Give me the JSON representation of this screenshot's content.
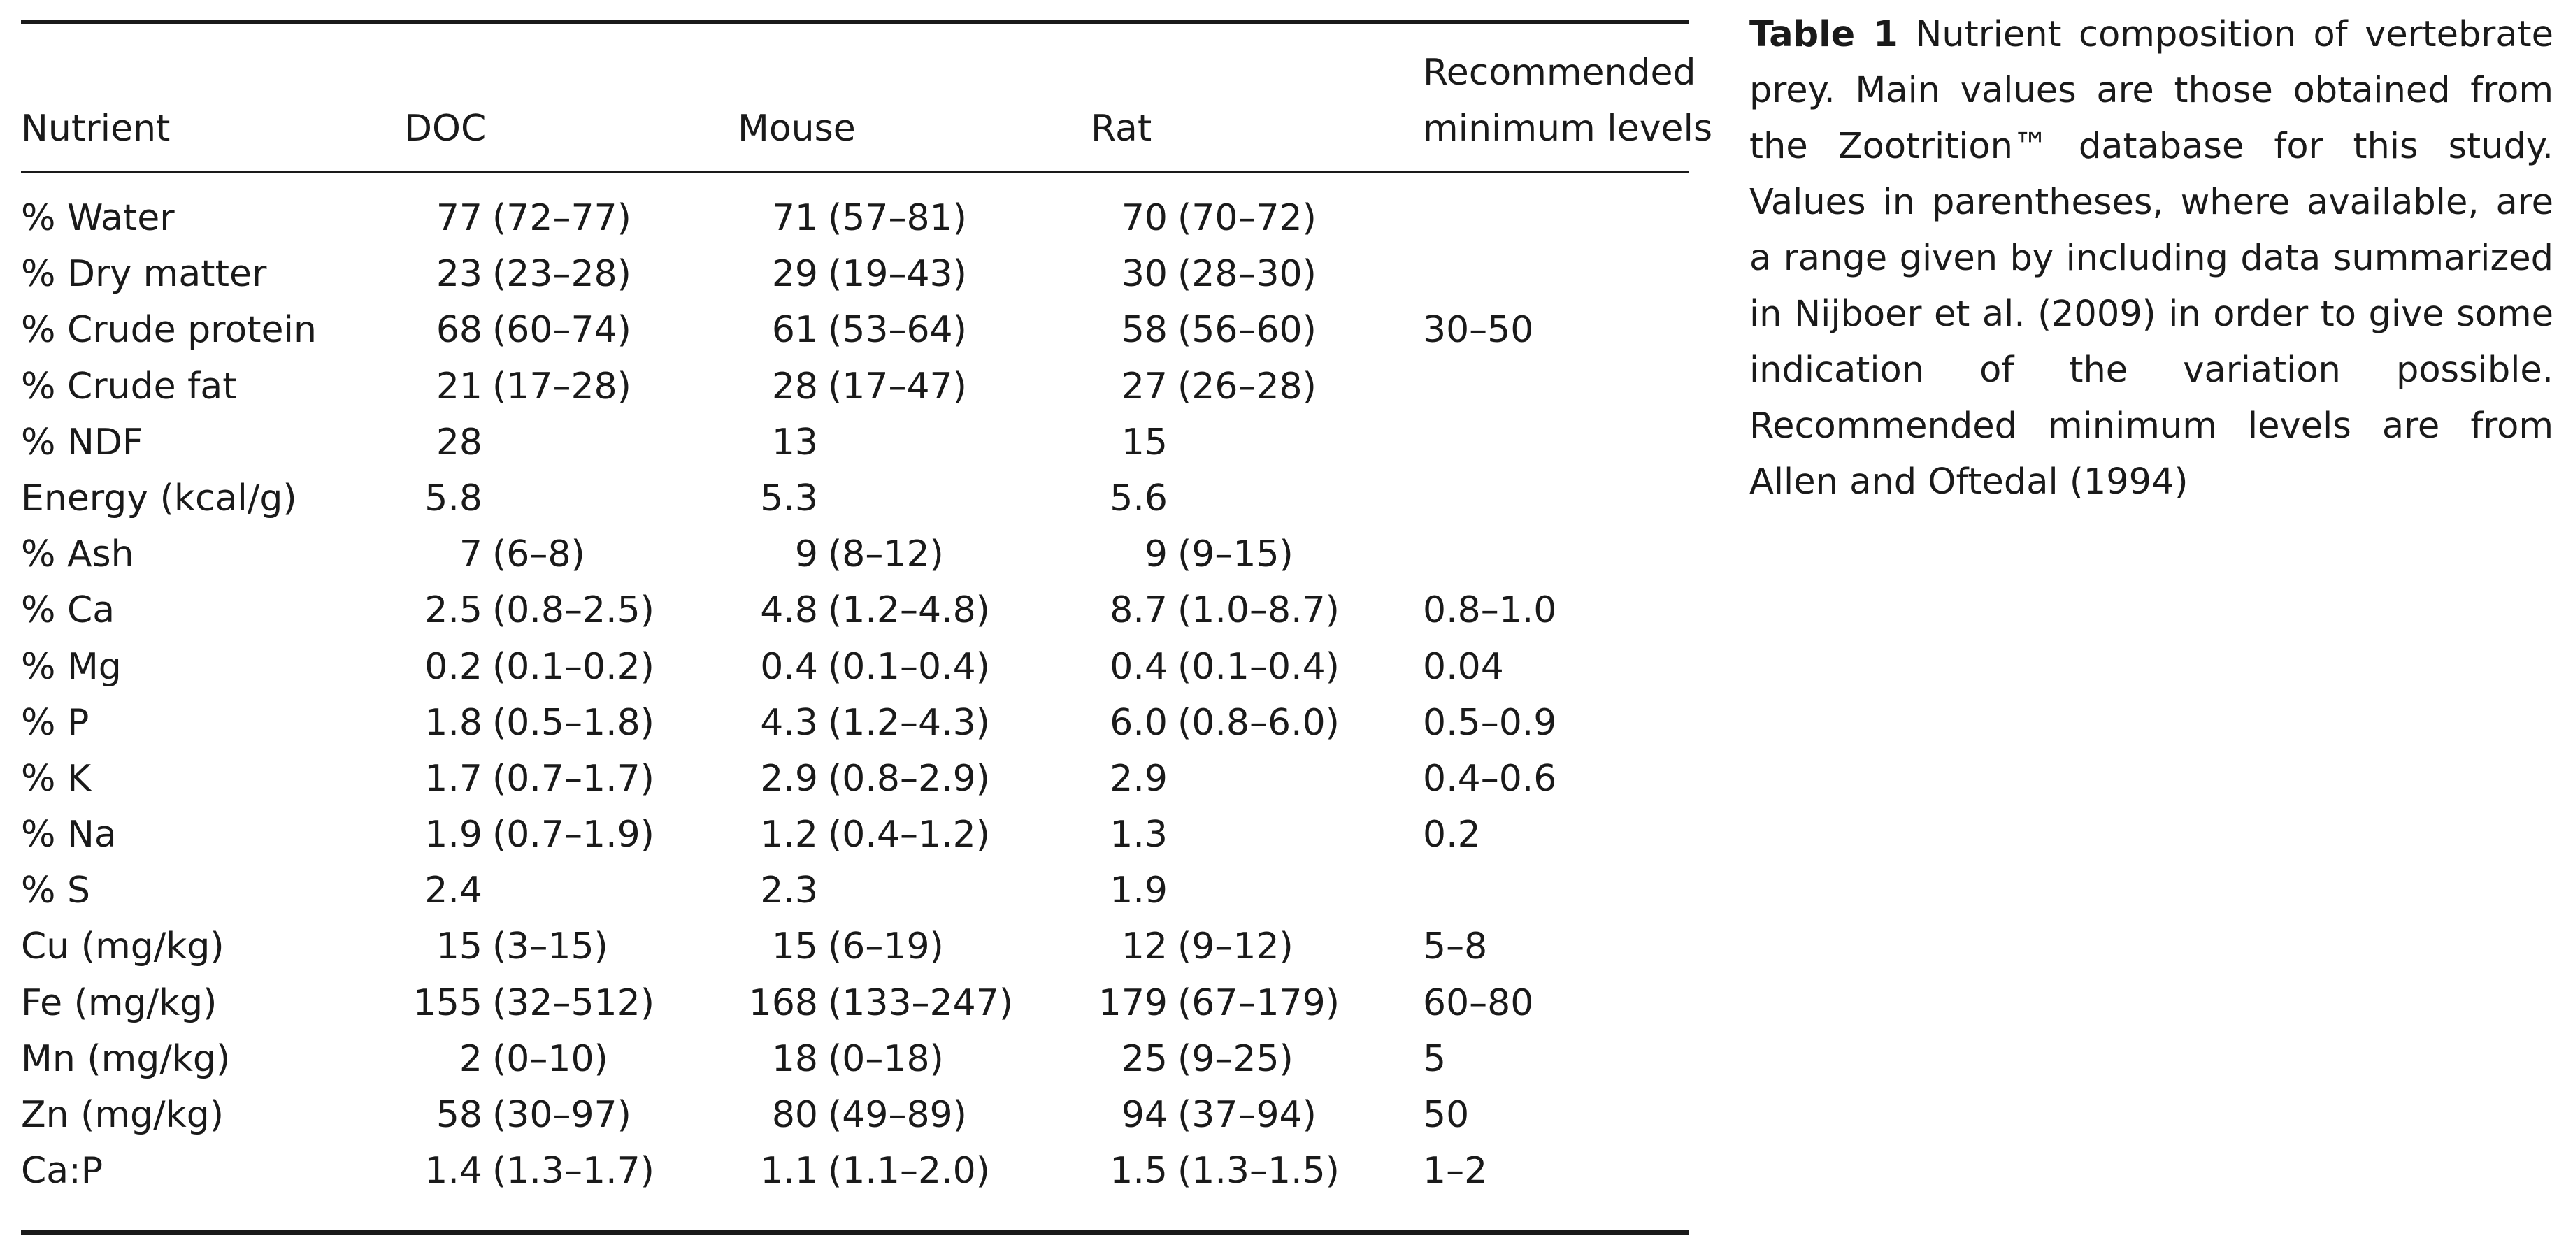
{
  "table": {
    "columns": {
      "nutrient": "Nutrient",
      "doc": "DOC",
      "mouse": "Mouse",
      "rat": "Rat",
      "rec_line1": "Recommended",
      "rec_line2": "minimum levels"
    },
    "rows": [
      {
        "nutrient": "% Water",
        "doc_v": "77",
        "doc_r": "(72–77)",
        "mouse_v": "71",
        "mouse_r": "(57–81)",
        "rat_v": "70",
        "rat_r": "(70–72)",
        "rec": ""
      },
      {
        "nutrient": "% Dry matter",
        "doc_v": "23",
        "doc_r": "(23–28)",
        "mouse_v": "29",
        "mouse_r": "(19–43)",
        "rat_v": "30",
        "rat_r": "(28–30)",
        "rec": ""
      },
      {
        "nutrient": "% Crude protein",
        "doc_v": "68",
        "doc_r": "(60–74)",
        "mouse_v": "61",
        "mouse_r": "(53–64)",
        "rat_v": "58",
        "rat_r": "(56–60)",
        "rec": "30–50"
      },
      {
        "nutrient": "% Crude fat",
        "doc_v": "21",
        "doc_r": "(17–28)",
        "mouse_v": "28",
        "mouse_r": "(17–47)",
        "rat_v": "27",
        "rat_r": "(26–28)",
        "rec": ""
      },
      {
        "nutrient": "% NDF",
        "doc_v": "28",
        "doc_r": "",
        "mouse_v": "13",
        "mouse_r": "",
        "rat_v": "15",
        "rat_r": "",
        "rec": ""
      },
      {
        "nutrient": "Energy (kcal/g)",
        "doc_v": "5.8",
        "doc_r": "",
        "mouse_v": "5.3",
        "mouse_r": "",
        "rat_v": "5.6",
        "rat_r": "",
        "rec": ""
      },
      {
        "nutrient": "% Ash",
        "doc_v": "7",
        "doc_r": "(6–8)",
        "mouse_v": "9",
        "mouse_r": "(8–12)",
        "rat_v": "9",
        "rat_r": "(9–15)",
        "rec": ""
      },
      {
        "nutrient": "% Ca",
        "doc_v": "2.5",
        "doc_r": "(0.8–2.5)",
        "mouse_v": "4.8",
        "mouse_r": "(1.2–4.8)",
        "rat_v": "8.7",
        "rat_r": "(1.0–8.7)",
        "rec": "0.8–1.0"
      },
      {
        "nutrient": "% Mg",
        "doc_v": "0.2",
        "doc_r": "(0.1–0.2)",
        "mouse_v": "0.4",
        "mouse_r": "(0.1–0.4)",
        "rat_v": "0.4",
        "rat_r": "(0.1–0.4)",
        "rec": "0.04"
      },
      {
        "nutrient": "% P",
        "doc_v": "1.8",
        "doc_r": "(0.5–1.8)",
        "mouse_v": "4.3",
        "mouse_r": "(1.2–4.3)",
        "rat_v": "6.0",
        "rat_r": "(0.8–6.0)",
        "rec": "0.5–0.9"
      },
      {
        "nutrient": "% K",
        "doc_v": "1.7",
        "doc_r": "(0.7–1.7)",
        "mouse_v": "2.9",
        "mouse_r": "(0.8–2.9)",
        "rat_v": "2.9",
        "rat_r": "",
        "rec": "0.4–0.6"
      },
      {
        "nutrient": "% Na",
        "doc_v": "1.9",
        "doc_r": "(0.7–1.9)",
        "mouse_v": "1.2",
        "mouse_r": "(0.4–1.2)",
        "rat_v": "1.3",
        "rat_r": "",
        "rec": "0.2"
      },
      {
        "nutrient": "% S",
        "doc_v": "2.4",
        "doc_r": "",
        "mouse_v": "2.3",
        "mouse_r": "",
        "rat_v": "1.9",
        "rat_r": "",
        "rec": ""
      },
      {
        "nutrient": "Cu (mg/kg)",
        "doc_v": "15",
        "doc_r": "(3–15)",
        "mouse_v": "15",
        "mouse_r": "(6–19)",
        "rat_v": "12",
        "rat_r": "(9–12)",
        "rec": "5–8"
      },
      {
        "nutrient": "Fe (mg/kg)",
        "doc_v": "155",
        "doc_r": "(32–512)",
        "mouse_v": "168",
        "mouse_r": "(133–247)",
        "rat_v": "179",
        "rat_r": "(67–179)",
        "rec": "60–80"
      },
      {
        "nutrient": "Mn (mg/kg)",
        "doc_v": "2",
        "doc_r": "(0–10)",
        "mouse_v": "18",
        "mouse_r": "(0–18)",
        "rat_v": "25",
        "rat_r": "(9–25)",
        "rec": "5"
      },
      {
        "nutrient": "Zn (mg/kg)",
        "doc_v": "58",
        "doc_r": "(30–97)",
        "mouse_v": "80",
        "mouse_r": "(49–89)",
        "rat_v": "94",
        "rat_r": "(37–94)",
        "rec": "50"
      },
      {
        "nutrient": "Ca:P",
        "doc_v": "1.4",
        "doc_r": "(1.3–1.7)",
        "mouse_v": "1.1",
        "mouse_r": "(1.1–2.0)",
        "rat_v": "1.5",
        "rat_r": "(1.3–1.5)",
        "rec": "1–2"
      }
    ]
  },
  "caption": {
    "label": "Table 1",
    "text": " Nutrient composition  of  vertebrate prey. Main values are those obtained from the Zootrition™ database for this study. Values in parentheses, where available, are a range given by including data summarized in Nijboer et al. (2009) in order to give some indication of the variation possible. Recommended minimum levels are from Allen and Oftedal (1994)"
  }
}
